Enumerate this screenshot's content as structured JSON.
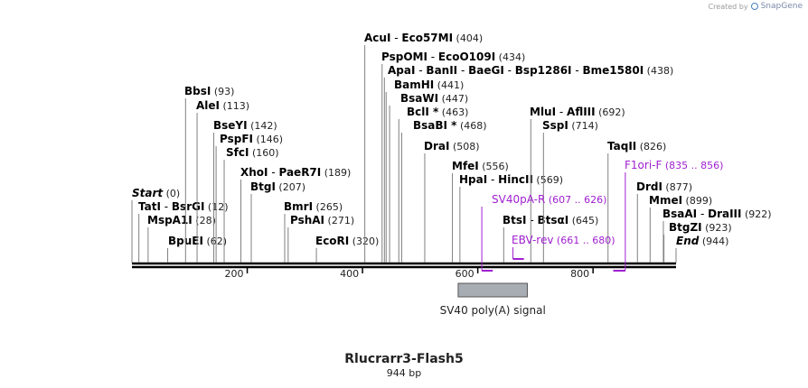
{
  "credit": {
    "created_by": "Created by",
    "brand": "SnapGene"
  },
  "map": {
    "name": "Rlucrarr3-Flash5",
    "length_label": "944 bp",
    "total_bp": 944
  },
  "ruler_ticks": [
    {
      "bp": 200,
      "label": "200"
    },
    {
      "bp": 400,
      "label": "400"
    },
    {
      "bp": 600,
      "label": "600"
    },
    {
      "bp": 800,
      "label": "800"
    }
  ],
  "enzymes": [
    {
      "id": "start",
      "site": 0,
      "line": [
        {
          "name": "Start",
          "italic": true,
          "pos": "(0)"
        }
      ]
    },
    {
      "id": "tati",
      "site": 12,
      "line": [
        {
          "name": "TatI",
          "pos": ""
        },
        {
          "name": "BsrGI",
          "pos": "(12)"
        }
      ]
    },
    {
      "id": "mspa1i",
      "site": 28,
      "line": [
        {
          "name": "MspA1I",
          "pos": "(28)"
        }
      ]
    },
    {
      "id": "bpuei",
      "site": 62,
      "line": [
        {
          "name": "BpuEI",
          "pos": "(62)"
        }
      ]
    },
    {
      "id": "bbsi",
      "site": 93,
      "line": [
        {
          "name": "BbsI",
          "pos": "(93)"
        }
      ]
    },
    {
      "id": "alei",
      "site": 113,
      "line": [
        {
          "name": "AleI",
          "pos": "(113)"
        }
      ]
    },
    {
      "id": "bseyi",
      "site": 142,
      "line": [
        {
          "name": "BseYI",
          "pos": "(142)"
        }
      ]
    },
    {
      "id": "pspfi",
      "site": 146,
      "line": [
        {
          "name": "PspFI",
          "pos": "(146)"
        }
      ]
    },
    {
      "id": "sfci",
      "site": 160,
      "line": [
        {
          "name": "SfcI",
          "pos": "(160)"
        }
      ]
    },
    {
      "id": "xhoi",
      "site": 189,
      "line": [
        {
          "name": "XhoI",
          "pos": ""
        },
        {
          "name": "PaeR7I",
          "pos": "(189)"
        }
      ]
    },
    {
      "id": "btgi",
      "site": 207,
      "line": [
        {
          "name": "BtgI",
          "pos": "(207)"
        }
      ]
    },
    {
      "id": "bmri",
      "site": 265,
      "line": [
        {
          "name": "BmrI",
          "pos": "(265)"
        }
      ]
    },
    {
      "id": "pshai",
      "site": 271,
      "line": [
        {
          "name": "PshAI",
          "pos": "(271)"
        }
      ]
    },
    {
      "id": "ecori",
      "site": 320,
      "line": [
        {
          "name": "EcoRI",
          "pos": "(320)"
        }
      ]
    },
    {
      "id": "acui",
      "site": 404,
      "line": [
        {
          "name": "AcuI",
          "pos": ""
        },
        {
          "name": "Eco57MI",
          "pos": "(404)"
        }
      ]
    },
    {
      "id": "pspomi",
      "site": 434,
      "line": [
        {
          "name": "PspOMI",
          "pos": ""
        },
        {
          "name": "EcoO109I",
          "pos": "(434)"
        }
      ]
    },
    {
      "id": "apai",
      "site": 438,
      "line": [
        {
          "name": "ApaI",
          "pos": ""
        },
        {
          "name": "BanII",
          "pos": ""
        },
        {
          "name": "BaeGI",
          "pos": ""
        },
        {
          "name": "Bsp1286I",
          "pos": ""
        },
        {
          "name": "Bme1580I",
          "pos": "(438)"
        }
      ]
    },
    {
      "id": "bamhi",
      "site": 441,
      "line": [
        {
          "name": "BamHI",
          "pos": "(441)"
        }
      ]
    },
    {
      "id": "bsawi",
      "site": 447,
      "line": [
        {
          "name": "BsaWI",
          "pos": "(447)"
        }
      ]
    },
    {
      "id": "bcli",
      "site": 463,
      "line": [
        {
          "name": "BclI *",
          "pos": "(463)"
        }
      ]
    },
    {
      "id": "bsabi",
      "site": 468,
      "line": [
        {
          "name": "BsaBI *",
          "pos": "(468)"
        }
      ]
    },
    {
      "id": "drai",
      "site": 508,
      "line": [
        {
          "name": "DraI",
          "pos": "(508)"
        }
      ]
    },
    {
      "id": "mfei",
      "site": 556,
      "line": [
        {
          "name": "MfeI",
          "pos": "(556)"
        }
      ]
    },
    {
      "id": "hpai",
      "site": 569,
      "line": [
        {
          "name": "HpaI",
          "pos": ""
        },
        {
          "name": "HincII",
          "pos": "(569)"
        }
      ]
    },
    {
      "id": "btsi",
      "site": 645,
      "line": [
        {
          "name": "BtsI",
          "pos": ""
        },
        {
          "name": "BtsαI",
          "pos": "(645)"
        }
      ]
    },
    {
      "id": "mlui",
      "site": 692,
      "line": [
        {
          "name": "MluI",
          "pos": ""
        },
        {
          "name": "AflIII",
          "pos": "(692)"
        }
      ]
    },
    {
      "id": "sspi",
      "site": 714,
      "line": [
        {
          "name": "SspI",
          "pos": "(714)"
        }
      ]
    },
    {
      "id": "taqii",
      "site": 826,
      "line": [
        {
          "name": "TaqII",
          "pos": "(826)"
        }
      ]
    },
    {
      "id": "drdi",
      "site": 877,
      "line": [
        {
          "name": "DrdI",
          "pos": "(877)"
        }
      ]
    },
    {
      "id": "mmei",
      "site": 899,
      "line": [
        {
          "name": "MmeI",
          "pos": "(899)"
        }
      ]
    },
    {
      "id": "bsaai",
      "site": 922,
      "line": [
        {
          "name": "BsaAI",
          "pos": ""
        },
        {
          "name": "DraIII",
          "pos": "(922)"
        }
      ]
    },
    {
      "id": "btgzi",
      "site": 923,
      "line": [
        {
          "name": "BtgZI",
          "pos": "(923)"
        }
      ]
    },
    {
      "id": "end",
      "site": 944,
      "line": [
        {
          "name": "End",
          "italic": true,
          "pos": "(944)"
        }
      ]
    }
  ],
  "primers": [
    {
      "id": "sv40pa-r",
      "name": "SV40pA-R",
      "range": "(607 .. 626)",
      "start": 607,
      "end": 626,
      "direction": "reverse",
      "color": "#a020d0"
    },
    {
      "id": "ebv-rev",
      "name": "EBV-rev",
      "range": "(661 .. 680)",
      "start": 661,
      "end": 680,
      "direction": "reverse",
      "color": "#a020d0"
    },
    {
      "id": "f1ori-f",
      "name": "F1ori-F",
      "range": "(835 .. 856)",
      "start": 835,
      "end": 856,
      "direction": "forward",
      "color": "#a020d0"
    }
  ],
  "features": [
    {
      "id": "sv40-polya",
      "label": "SV40 poly(A) signal",
      "start": 566,
      "end": 686,
      "color": "#a8adb4"
    }
  ],
  "colors": {
    "dna": "#000000",
    "enzyme_line": "#808080",
    "label": "#000000",
    "pos": "#222222"
  }
}
